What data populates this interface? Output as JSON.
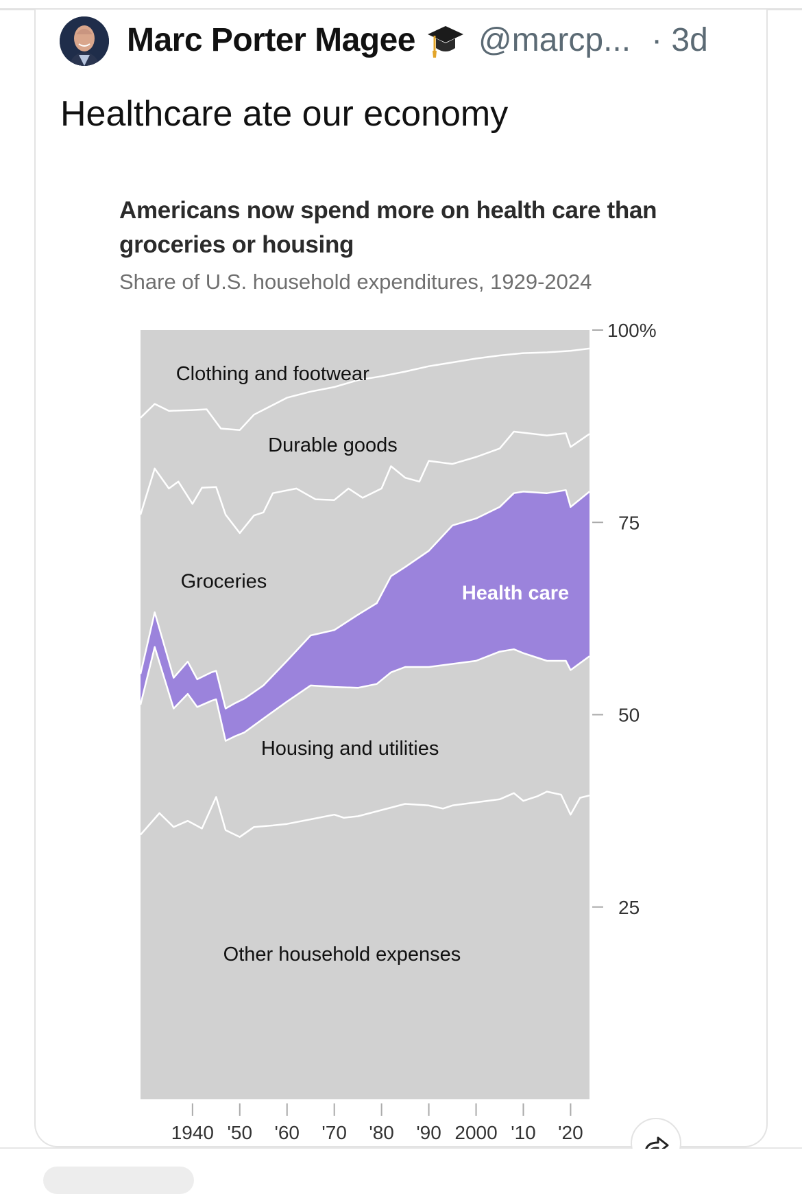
{
  "post": {
    "author_name": "Marc Porter Magee",
    "author_badge_icon": "graduation-cap-emoji",
    "handle": "@marcp...",
    "separator": "·",
    "time_ago": "3d",
    "text": "Healthcare ate our economy"
  },
  "colors": {
    "plot_background": "#d1d1d1",
    "health_care_fill": "#9b83dc",
    "divider_lines": "#ffffff",
    "axis_text": "#333333"
  },
  "chart_data": {
    "type": "area",
    "stacked": true,
    "title": "Americans now spend more on health care than groceries or housing",
    "subtitle": "Share of U.S. household expenditures, 1929-2024",
    "xlabel": "",
    "ylabel": "",
    "xlim": [
      1929,
      2024
    ],
    "ylim": [
      0,
      100
    ],
    "y_axis_side": "right",
    "y_ticks": [
      {
        "value": 100,
        "label": "100%"
      },
      {
        "value": 75,
        "label": "75"
      },
      {
        "value": 50,
        "label": "50"
      },
      {
        "value": 25,
        "label": "25"
      }
    ],
    "x_ticks": [
      {
        "value": 1940,
        "label": "1940"
      },
      {
        "value": 1950,
        "label": "'50"
      },
      {
        "value": 1960,
        "label": "'60"
      },
      {
        "value": 1970,
        "label": "'70"
      },
      {
        "value": 1980,
        "label": "'80"
      },
      {
        "value": 1990,
        "label": "'90"
      },
      {
        "value": 2000,
        "label": "2000"
      },
      {
        "value": 2010,
        "label": "'10"
      },
      {
        "value": 2020,
        "label": "'20"
      }
    ],
    "grid": false,
    "legend": "none (direct labels)",
    "series_order_bottom_to_top": [
      "Other household expenses",
      "Housing and utilities",
      "Health care",
      "Groceries",
      "Durable goods",
      "Clothing and footwear"
    ],
    "boundaries_note": "cumulative share (%) at top edge of each band; top band ends at 100",
    "boundaries": {
      "other_top": {
        "x": [
          1929,
          1933,
          1936,
          1939,
          1942,
          1945,
          1947,
          1950,
          1953,
          1957,
          1960,
          1965,
          1970,
          1972,
          1975,
          1980,
          1985,
          1990,
          1993,
          1995,
          2000,
          2005,
          2008,
          2010,
          2013,
          2015,
          2018,
          2020,
          2022,
          2024
        ],
        "values": [
          34.4,
          37.2,
          35.4,
          36.2,
          35.2,
          39.3,
          35.0,
          34.1,
          35.4,
          35.6,
          35.8,
          36.4,
          37.0,
          36.6,
          36.8,
          37.6,
          38.4,
          38.2,
          37.8,
          38.2,
          38.6,
          39.0,
          39.8,
          38.8,
          39.4,
          40.0,
          39.6,
          37.0,
          39.2,
          39.5
        ]
      },
      "housing_top": {
        "x": [
          1929,
          1932,
          1936,
          1939,
          1941,
          1944,
          1945,
          1947,
          1949,
          1951,
          1955,
          1960,
          1965,
          1970,
          1975,
          1979,
          1982,
          1985,
          1990,
          1995,
          2000,
          2005,
          2008,
          2010,
          2015,
          2019,
          2020,
          2024
        ],
        "values": [
          51.3,
          58.8,
          50.8,
          52.7,
          51.0,
          51.8,
          52.0,
          46.6,
          47.2,
          47.7,
          49.5,
          51.7,
          53.8,
          53.6,
          53.5,
          54.0,
          55.5,
          56.2,
          56.2,
          56.6,
          57.0,
          58.2,
          58.5,
          58.0,
          57.0,
          57.0,
          55.8,
          57.6
        ]
      },
      "health_care_top": {
        "x": [
          1929,
          1932,
          1936,
          1939,
          1941,
          1944,
          1945,
          1947,
          1949,
          1951,
          1955,
          1960,
          1965,
          1970,
          1975,
          1979,
          1982,
          1985,
          1990,
          1995,
          2000,
          2005,
          2008,
          2010,
          2015,
          2019,
          2020,
          2024
        ],
        "values": [
          55.3,
          63.3,
          54.8,
          56.9,
          54.6,
          55.5,
          55.7,
          50.8,
          51.5,
          52.1,
          53.8,
          57.0,
          60.3,
          61.0,
          63.0,
          64.5,
          68.0,
          69.2,
          71.3,
          74.6,
          75.5,
          77.0,
          78.8,
          79.0,
          78.8,
          79.2,
          77.0,
          79.0
        ]
      },
      "groceries_top": {
        "x": [
          1929,
          1932,
          1935,
          1937,
          1940,
          1942,
          1945,
          1947,
          1950,
          1953,
          1955,
          1957,
          1962,
          1966,
          1970,
          1973,
          1976,
          1980,
          1982,
          1985,
          1988,
          1990,
          1995,
          2000,
          2005,
          2008,
          2015,
          2019,
          2020,
          2024
        ],
        "values": [
          76.0,
          82.0,
          79.4,
          80.3,
          77.4,
          79.5,
          79.6,
          76.0,
          73.6,
          75.9,
          76.3,
          78.8,
          79.4,
          78.0,
          77.9,
          79.4,
          78.2,
          79.4,
          82.3,
          80.8,
          80.3,
          83.0,
          82.6,
          83.5,
          84.6,
          86.8,
          86.3,
          86.6,
          84.8,
          86.5
        ]
      },
      "durable_top": {
        "x": [
          1929,
          1932,
          1935,
          1940,
          1943,
          1946,
          1950,
          1953,
          1960,
          1965,
          1970,
          1975,
          1980,
          1985,
          1990,
          1995,
          2000,
          2005,
          2010,
          2015,
          2020,
          2024
        ],
        "values": [
          88.6,
          90.4,
          89.5,
          89.6,
          89.7,
          87.2,
          87.0,
          89.0,
          91.2,
          92.0,
          92.6,
          93.5,
          94.0,
          94.6,
          95.3,
          95.8,
          96.3,
          96.7,
          97.0,
          97.1,
          97.3,
          97.6
        ]
      }
    },
    "series": [
      {
        "name": "Clothing and footwear",
        "label": "Clothing and footwear"
      },
      {
        "name": "Durable goods",
        "label": "Durable goods"
      },
      {
        "name": "Groceries",
        "label": "Groceries"
      },
      {
        "name": "Health care",
        "label": "Health care",
        "highlighted": true
      },
      {
        "name": "Housing and utilities",
        "label": "Housing and utilities"
      },
      {
        "name": "Other household expenses",
        "label": "Other household expenses"
      }
    ]
  },
  "actions": {
    "share_icon": "share-arrow-icon"
  }
}
